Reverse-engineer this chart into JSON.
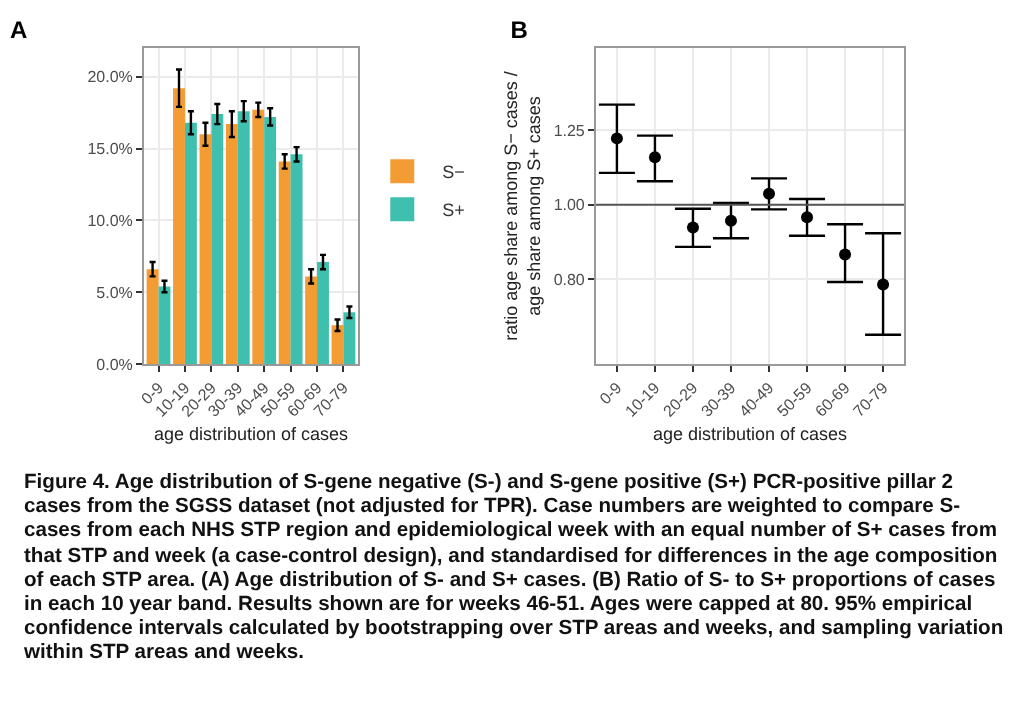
{
  "chart_data": [
    {
      "type": "bar",
      "title": "A",
      "xlabel": "age distribution of cases",
      "categories": [
        "0-9",
        "10-19",
        "20-29",
        "30-39",
        "40-49",
        "50-59",
        "60-69",
        "70-79"
      ],
      "series": [
        {
          "name": "S−",
          "color": "#f39c34",
          "values": [
            6.6,
            19.2,
            16.0,
            16.7,
            17.7,
            14.1,
            6.1,
            2.7
          ],
          "errors": [
            0.5,
            1.3,
            0.8,
            0.9,
            0.5,
            0.5,
            0.5,
            0.4
          ]
        },
        {
          "name": "S+",
          "color": "#3fbfad",
          "values": [
            5.4,
            16.8,
            17.4,
            17.6,
            17.2,
            14.6,
            7.1,
            3.6
          ],
          "errors": [
            0.4,
            0.8,
            0.7,
            0.7,
            0.6,
            0.5,
            0.5,
            0.4
          ]
        }
      ],
      "ylim": [
        0,
        22
      ],
      "yticks": [
        {
          "value": 0,
          "label": "0.0%"
        },
        {
          "value": 5,
          "label": "5.0%"
        },
        {
          "value": 10,
          "label": "10.0%"
        },
        {
          "value": 15,
          "label": "15.0%"
        },
        {
          "value": 20,
          "label": "20.0%"
        }
      ],
      "grid": true,
      "legend": "right",
      "annotations": [
        "Figure 4. Age distribution of S-gene negative (S-) and S-gene positive (S+) PCR-positive pillar 2 cases from the SGSS dataset (not adjusted for TPR). Case numbers are weighted to compare S- cases from each NHS STP region and epidemiological week with an equal number of S+ cases from that STP and week (a case-control design), and standardised for differences in the age composition of each STP area. (A) Age distribution of S- and S+ cases. (B) Ratio of S- to S+ proportions of cases in each 10 year band. Results shown are for weeks 46-51. Ages were capped at 80. 95% empirical confidence intervals calculated by bootstrapping over STP areas and weeks, and sampling variation within STP areas and weeks."
      ]
    },
    {
      "type": "scatter",
      "title": "B",
      "xlabel": "age distribution of cases",
      "ylabel": "ratio age share among S− cases /\nage share among S+ cases",
      "categories": [
        "0-9",
        "10-19",
        "20-29",
        "30-39",
        "40-49",
        "50-59",
        "60-69",
        "70-79"
      ],
      "series": [
        {
          "color": "#000000",
          "values": [
            1.22,
            1.153,
            0.934,
            0.953,
            1.033,
            0.963,
            0.861,
            0.787
          ],
          "errors": [
            [
              1.1,
              1.35
            ],
            [
              1.073,
              1.23
            ],
            [
              0.881,
              0.988
            ],
            [
              0.904,
              1.005
            ],
            [
              0.986,
              1.082
            ],
            [
              0.911,
              1.017
            ],
            [
              0.793,
              0.943
            ],
            [
              0.677,
              0.918
            ]
          ]
        }
      ],
      "log": "y",
      "ylim": [
        0.62,
        1.6
      ],
      "yticks": [
        {
          "value": 0.8,
          "label": "0.80"
        },
        {
          "value": 1,
          "label": "1.00"
        },
        {
          "value": 1.25,
          "label": "1.25"
        }
      ],
      "ref_lines": [
        {
          "axis": "y",
          "value": 1,
          "color": "#555555"
        }
      ],
      "grid": true,
      "legend": false,
      "marker": "circle"
    }
  ]
}
